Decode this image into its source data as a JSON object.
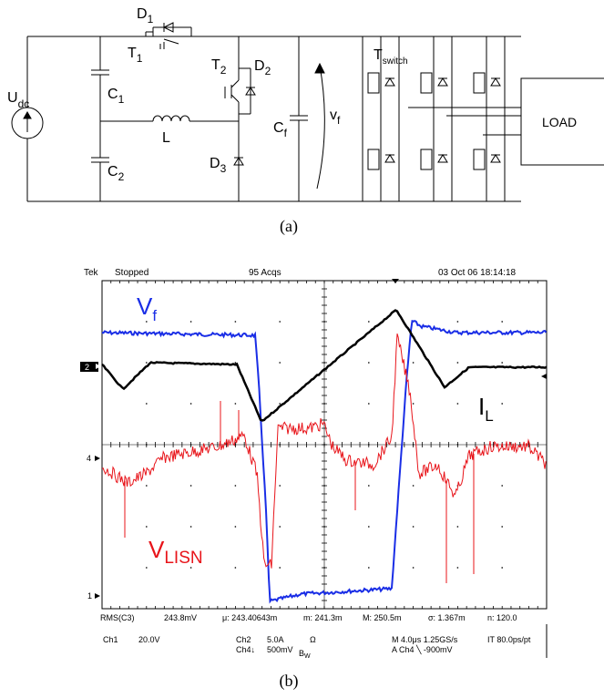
{
  "panel_a": {
    "caption": "(a)",
    "labels": {
      "udc_main": "U",
      "udc_sub": "dc",
      "c1_main": "C",
      "c1_sub": "1",
      "c2_main": "C",
      "c2_sub": "2",
      "l": "L",
      "d1_main": "D",
      "d1_sub": "1",
      "t1_main": "T",
      "t1_sub": "1",
      "t2_main": "T",
      "t2_sub": "2",
      "d2_main": "D",
      "d2_sub": "2",
      "d3_main": "D",
      "d3_sub": "3",
      "cf_main": "C",
      "cf_sub": "f",
      "vf_main": "v",
      "vf_sub": "f",
      "tsw_main": "T",
      "tsw_sub": "switch",
      "load": "LOAD"
    }
  },
  "panel_b": {
    "caption": "(b)",
    "header": {
      "brand": "Tek",
      "state": "Stopped",
      "acqs": "95 Acqs",
      "datetime": "03 Oct 06 18:14:18"
    },
    "markers": {
      "ch2": "2",
      "ch4": "4",
      "ch1": "1"
    },
    "trace_labels": {
      "vf_main": "V",
      "vf_sub": "f",
      "il_main": "I",
      "il_sub": "L",
      "vlisn_main": "V",
      "vlisn_sub": "LISN"
    },
    "colors": {
      "vf": "#1a2ee6",
      "il": "#000000",
      "vlisn": "#e8141a",
      "grid": "#000000"
    },
    "footer": {
      "rms_label": "RMS(C3)",
      "rms_value": "243.8mV",
      "mu": "μ: 243.40643m",
      "m": "m: 241.3m",
      "M": "M: 250.5m",
      "sigma": "σ: 1.367m",
      "n": "n: 120.0",
      "ch1_label": "Ch1",
      "ch1_scale": "20.0V",
      "ch2_label": "Ch2",
      "ch2_scale": "5.0A",
      "ohm": "Ω",
      "ch4_label": "Ch4↓",
      "ch4_scale": "500mV",
      "bw_main": "B",
      "bw_sub": "W",
      "timebase": "M 4.0μs 1.25GS/s",
      "pt": "IT 80.0ps/pt",
      "trigger": "A  Ch4  ╲  -900mV"
    }
  }
}
